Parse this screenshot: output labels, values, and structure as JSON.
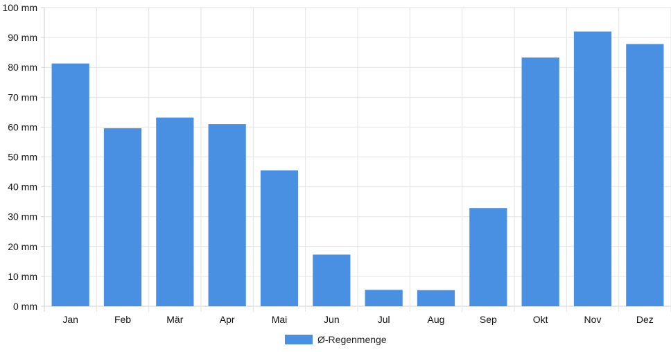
{
  "chart_data": {
    "type": "bar",
    "categories": [
      "Jan",
      "Feb",
      "Mär",
      "Apr",
      "Mai",
      "Jun",
      "Jul",
      "Aug",
      "Sep",
      "Okt",
      "Nov",
      "Dez"
    ],
    "series": [
      {
        "name": "Ø-Regenmenge",
        "values": [
          81.3,
          59.6,
          63.2,
          61.0,
          45.5,
          17.3,
          5.5,
          5.4,
          32.9,
          83.3,
          92.0,
          87.8
        ],
        "color": "#4a90e2"
      }
    ],
    "y_ticks": [
      "0 mm",
      "10 mm",
      "20 mm",
      "30 mm",
      "40 mm",
      "50 mm",
      "60 mm",
      "70 mm",
      "80 mm",
      "90 mm",
      "100 mm"
    ],
    "ylim": [
      0,
      100
    ],
    "grid": true,
    "legend_position": "bottom-center"
  }
}
